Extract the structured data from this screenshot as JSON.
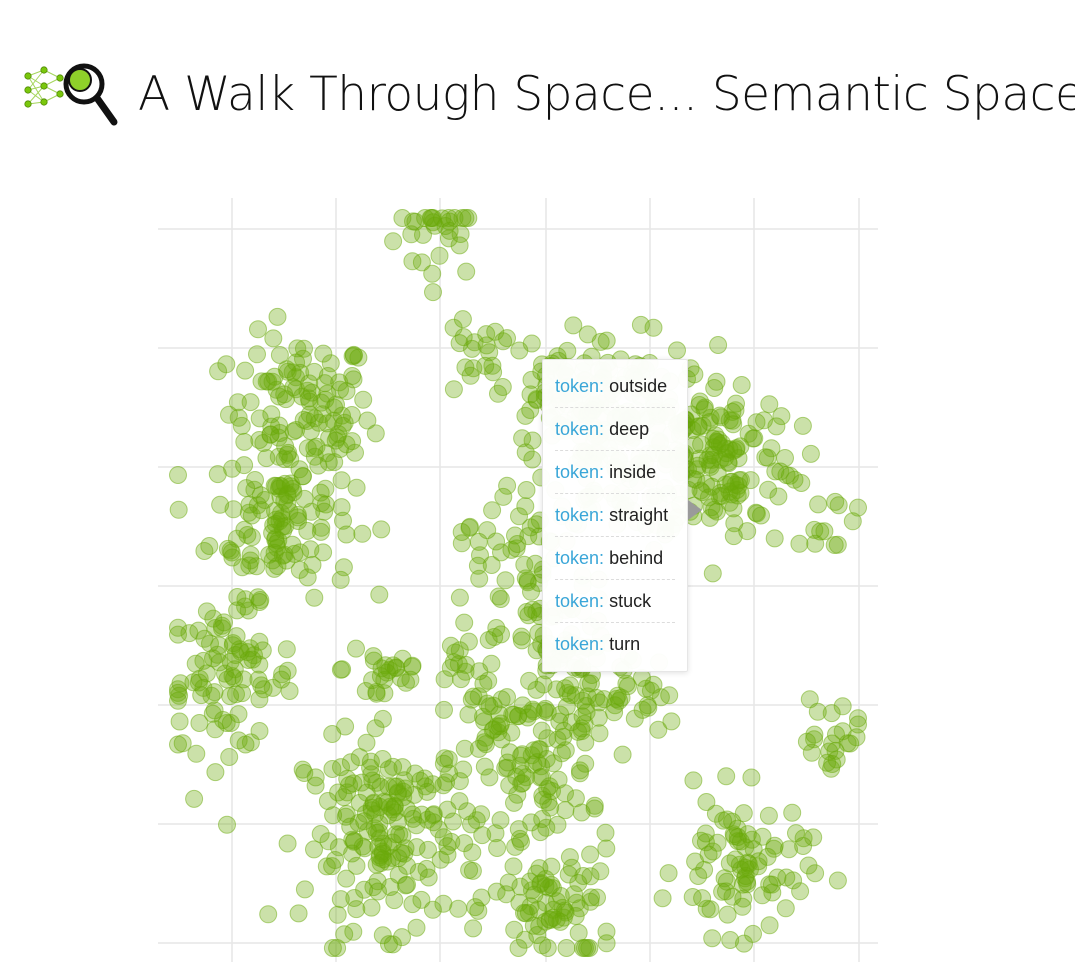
{
  "header": {
    "title": "A Walk Through Space... Semantic Space!",
    "logo_icon": "neural-network-magnifier-icon"
  },
  "colors": {
    "point": "#6aa90a",
    "grid": "#e6e6e6",
    "tooltip_key": "#3aa6d8",
    "tooltip_value": "#222222",
    "background": "#ffffff"
  },
  "tooltip": {
    "items": [
      {
        "key": "token:",
        "value": "outside"
      },
      {
        "key": "token:",
        "value": "deep"
      },
      {
        "key": "token:",
        "value": "inside"
      },
      {
        "key": "token:",
        "value": "straight"
      },
      {
        "key": "token:",
        "value": "behind"
      },
      {
        "key": "token:",
        "value": "stuck"
      },
      {
        "key": "token:",
        "value": "turn"
      }
    ]
  },
  "chart_data": {
    "type": "scatter",
    "title": "",
    "xlabel": "",
    "ylabel": "",
    "grid": true,
    "tick_labels": false,
    "xlim": [
      0,
      100
    ],
    "ylim": [
      0,
      100
    ],
    "point_opacity": 0.35,
    "clusters": [
      {
        "x": 39.0,
        "y": 96.0,
        "n": 30
      },
      {
        "x": 19.5,
        "y": 72.0,
        "n": 110
      },
      {
        "x": 17.0,
        "y": 58.0,
        "n": 110
      },
      {
        "x": 9.5,
        "y": 37.0,
        "n": 90
      },
      {
        "x": 31.5,
        "y": 38.5,
        "n": 25
      },
      {
        "x": 43.0,
        "y": 38.5,
        "n": 20
      },
      {
        "x": 43.5,
        "y": 79.0,
        "n": 18
      },
      {
        "x": 65.0,
        "y": 68.0,
        "n": 200
      },
      {
        "x": 78.0,
        "y": 66.0,
        "n": 130
      },
      {
        "x": 55.0,
        "y": 74.0,
        "n": 60
      },
      {
        "x": 48.5,
        "y": 55.0,
        "n": 35
      },
      {
        "x": 55.5,
        "y": 42.0,
        "n": 60
      },
      {
        "x": 48.0,
        "y": 31.0,
        "n": 40
      },
      {
        "x": 52.5,
        "y": 24.0,
        "n": 50
      },
      {
        "x": 58.0,
        "y": 33.0,
        "n": 40
      },
      {
        "x": 66.0,
        "y": 35.0,
        "n": 25
      },
      {
        "x": 32.5,
        "y": 17.0,
        "n": 190
      },
      {
        "x": 55.0,
        "y": 7.0,
        "n": 75
      },
      {
        "x": 81.0,
        "y": 12.5,
        "n": 85
      },
      {
        "x": 94.0,
        "y": 29.5,
        "n": 22
      },
      {
        "x": 92.5,
        "y": 58.5,
        "n": 15
      }
    ]
  }
}
